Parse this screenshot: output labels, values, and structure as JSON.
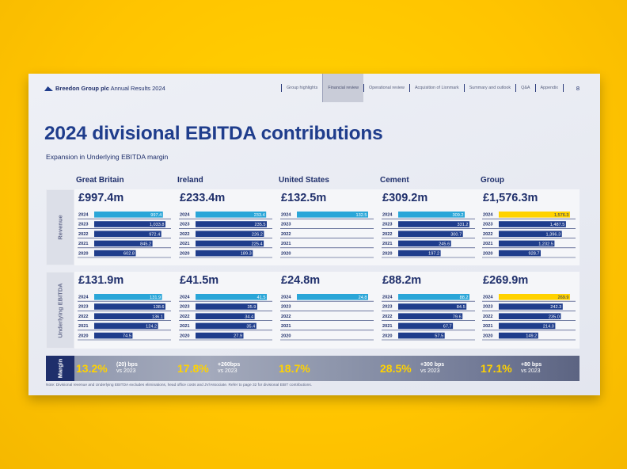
{
  "header": {
    "brand_name": "Breedon Group plc",
    "brand_suffix": "Annual Results 2024",
    "nav": [
      "Group highlights",
      "Financial review",
      "Operational review",
      "Acquisition of Lionmark",
      "Summary and outlook",
      "Q&A",
      "Appendix"
    ],
    "active_nav": 1,
    "page_number": "8"
  },
  "title": "2024 divisional EBITDA contributions",
  "subtitle": "Expansion in Underlying EBITDA margin",
  "row_labels": {
    "revenue": "Revenue",
    "ebitda": "Underlying EBITDA",
    "margin": "Margin"
  },
  "colors": {
    "navy": "#1f3d8c",
    "current_year": "#2aa6d8",
    "group_current": "#ffd200",
    "margin_text": "#ffd200"
  },
  "chart_data": [
    {
      "type": "bar",
      "metric": "Revenue",
      "categories": [
        "2024",
        "2023",
        "2022",
        "2021",
        "2020"
      ],
      "series": [
        {
          "name": "Great Britain",
          "headline": "£997.4m",
          "values": [
            997.4,
            1033.8,
            972.4,
            845.2,
            602.8
          ],
          "labels": [
            "997.4",
            "1,033.8",
            "972.4",
            "845.2",
            "602.8"
          ]
        },
        {
          "name": "Ireland",
          "headline": "£233.4m",
          "values": [
            233.4,
            235.5,
            226.2,
            225.4,
            189.3
          ],
          "labels": [
            "233.4",
            "235.5",
            "226.2",
            "225.4",
            "189.3"
          ]
        },
        {
          "name": "United States",
          "headline": "£132.5m",
          "values": [
            132.5,
            null,
            null,
            null,
            null
          ],
          "labels": [
            "132.5",
            "",
            "",
            "",
            ""
          ]
        },
        {
          "name": "Cement",
          "headline": "£309.2m",
          "values": [
            309.2,
            331.2,
            300.7,
            245.6,
            197.2
          ],
          "labels": [
            "309.2",
            "331.2",
            "300.7",
            "245.6",
            "197.2"
          ]
        },
        {
          "name": "Group",
          "headline": "£1,576.3m",
          "values": [
            1576.3,
            1487.5,
            1396.3,
            1232.5,
            928.7
          ],
          "labels": [
            "1,576.3",
            "1,487.5",
            "1,396.3",
            "1,232.5",
            "928.7"
          ]
        }
      ]
    },
    {
      "type": "bar",
      "metric": "Underlying EBITDA",
      "categories": [
        "2024",
        "2023",
        "2022",
        "2021",
        "2020"
      ],
      "series": [
        {
          "name": "Great Britain",
          "headline": "£131.9m",
          "values": [
            131.9,
            138.6,
            136.1,
            124.2,
            74.5
          ],
          "labels": [
            "131.9",
            "138.6",
            "136.1",
            "124.2",
            "74.5"
          ]
        },
        {
          "name": "Ireland",
          "headline": "£41.5m",
          "values": [
            41.5,
            35.9,
            34.4,
            35.4,
            27.9
          ],
          "labels": [
            "41.5",
            "35.9",
            "34.4",
            "35.4",
            "27.9"
          ]
        },
        {
          "name": "United States",
          "headline": "£24.8m",
          "values": [
            24.8,
            null,
            null,
            null,
            null
          ],
          "labels": [
            "24.8",
            "",
            "",
            "",
            ""
          ]
        },
        {
          "name": "Cement",
          "headline": "£88.2m",
          "values": [
            88.2,
            84.5,
            79.6,
            67.7,
            57.5
          ],
          "labels": [
            "88.2",
            "84.5",
            "79.6",
            "67.7",
            "57.5"
          ]
        },
        {
          "name": "Group",
          "headline": "£269.9m",
          "values": [
            269.9,
            242.3,
            235.0,
            214.0,
            149.2
          ],
          "labels": [
            "269.9",
            "242.3",
            "235.0",
            "214.0",
            "149.2"
          ]
        }
      ]
    }
  ],
  "margins": [
    {
      "value": "13.2%",
      "change": "(20) bps",
      "vs": "vs 2023"
    },
    {
      "value": "17.8%",
      "change": "+260bps",
      "vs": "vs 2023"
    },
    {
      "value": "18.7%",
      "change": "",
      "vs": ""
    },
    {
      "value": "28.5%",
      "change": "+300 bps",
      "vs": "vs 2023"
    },
    {
      "value": "17.1%",
      "change": "+80 bps",
      "vs": "vs 2023"
    }
  ],
  "footnote": "Note: Divisional revenue and Underlying EBITDA excludes eliminations, head office costs and JV/Associate. Refer to page 32 for divisional EBIT contributions."
}
